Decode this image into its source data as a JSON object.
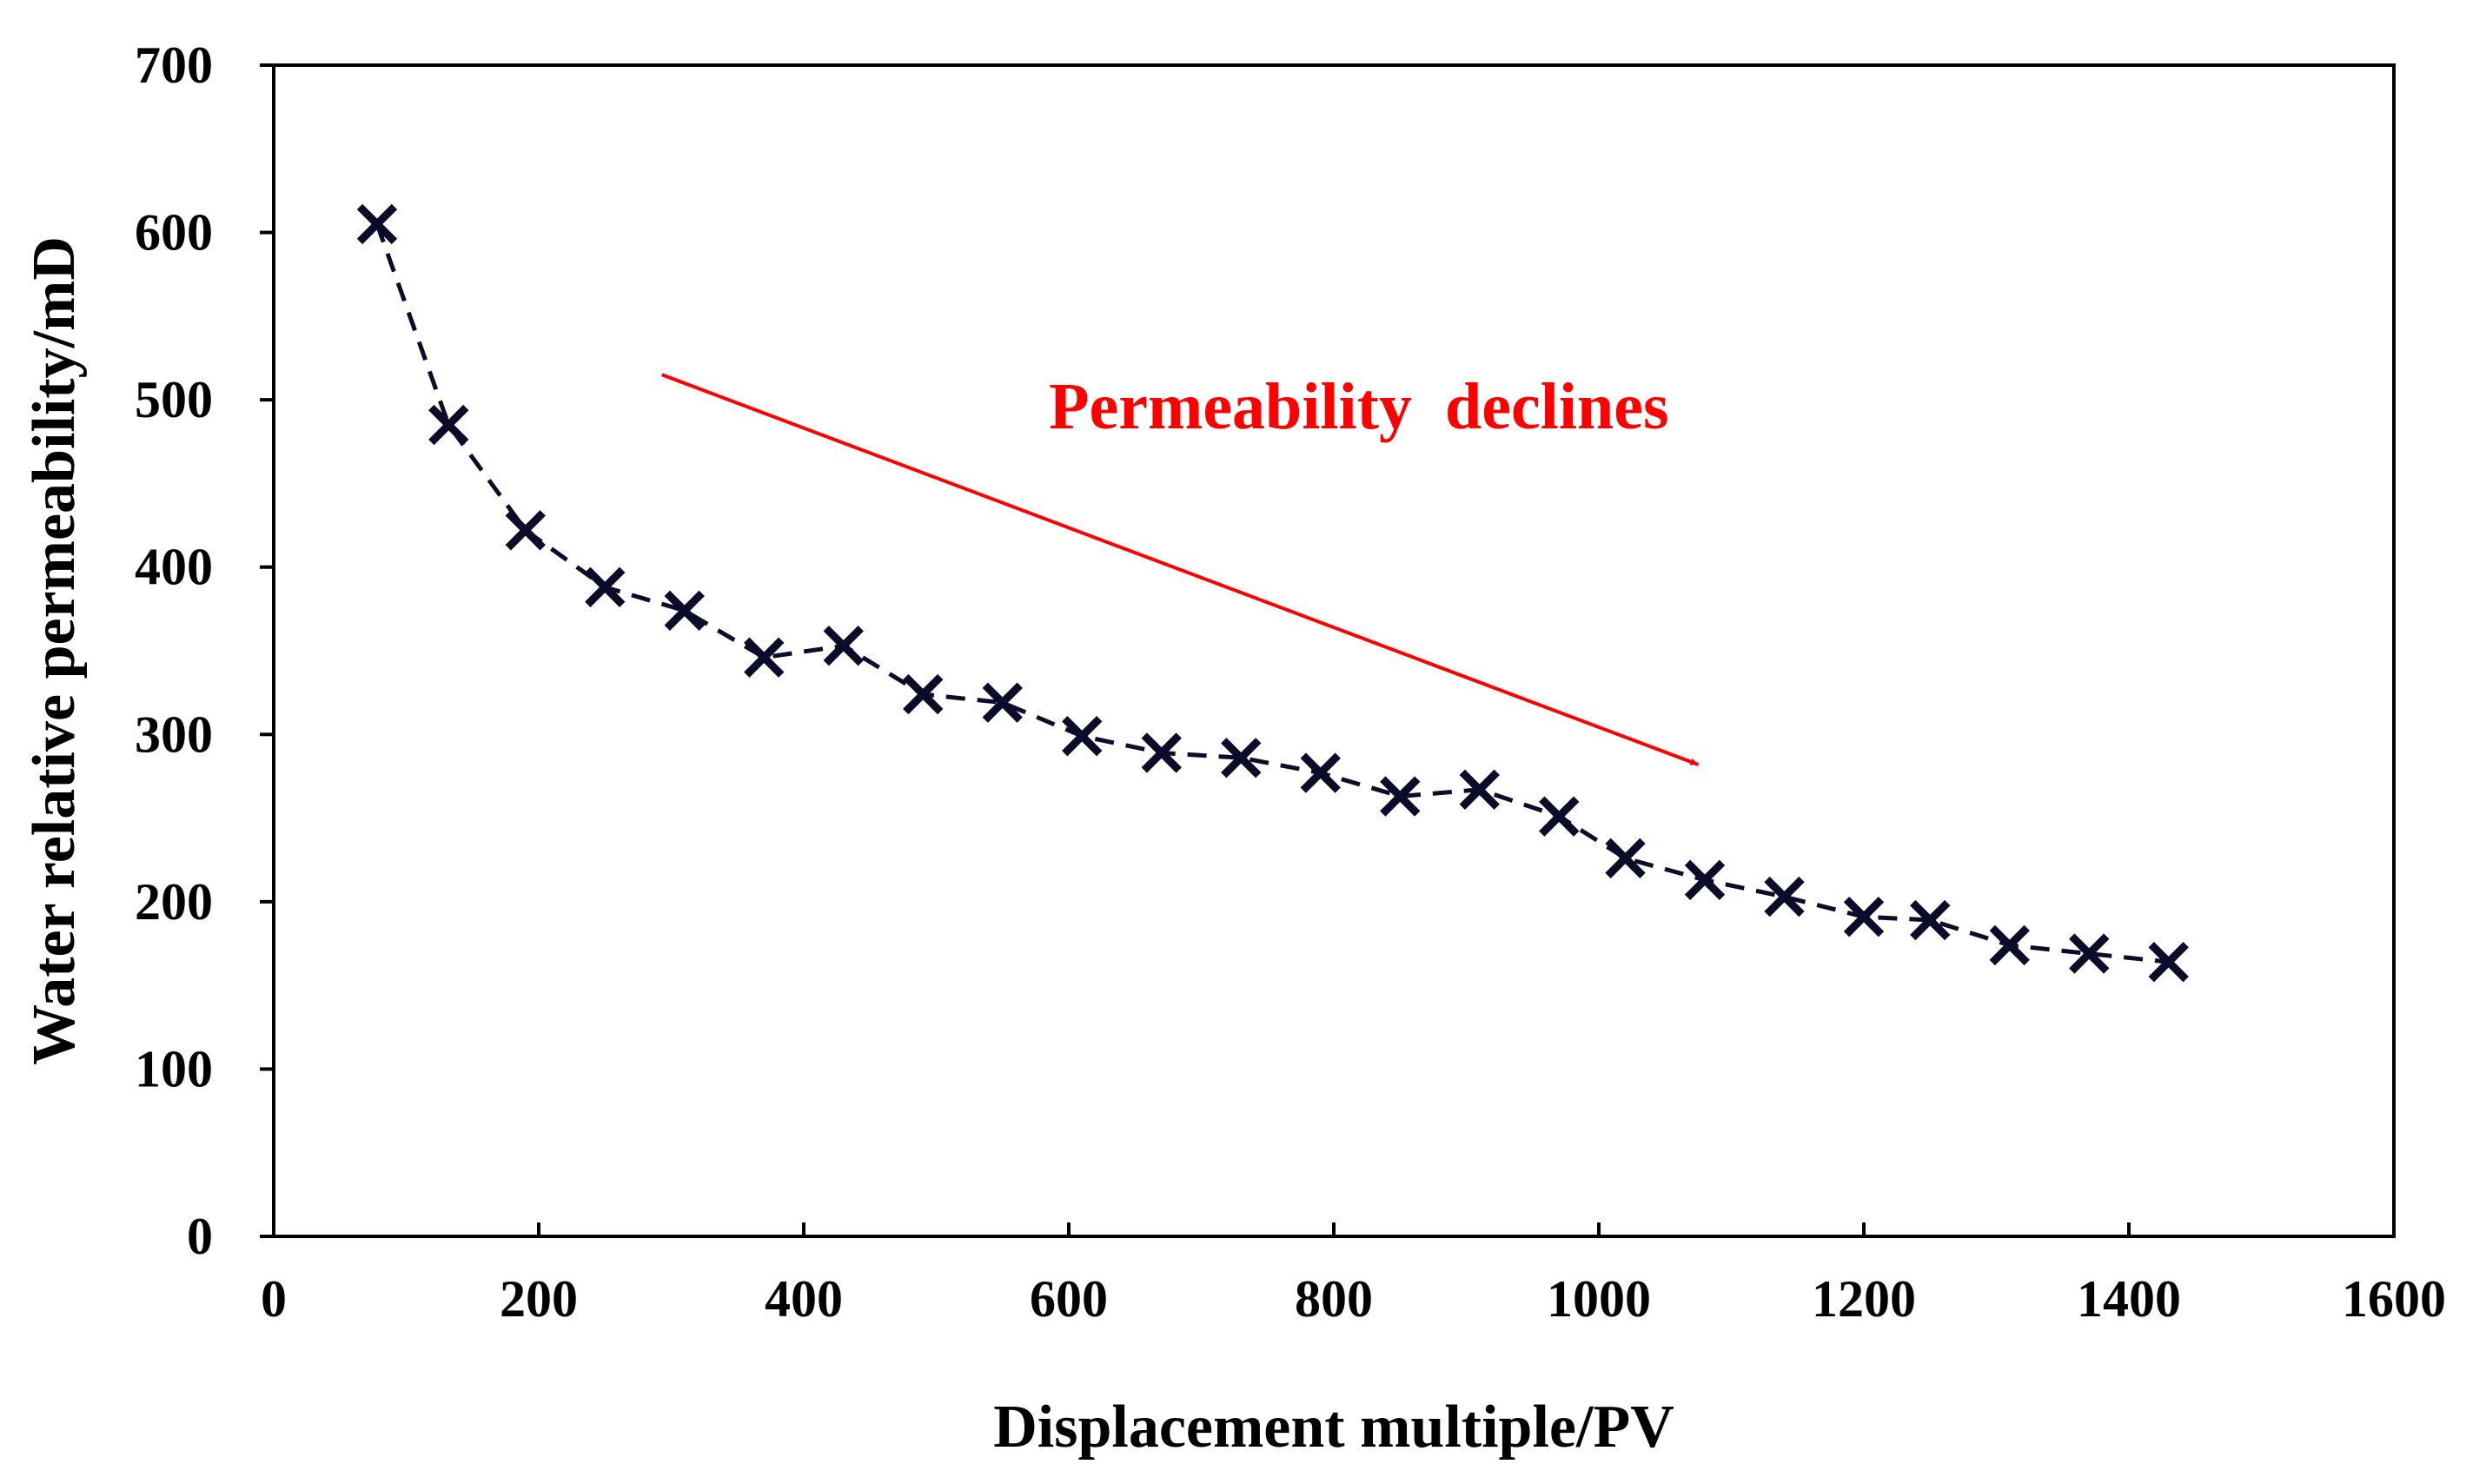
{
  "chart_data": {
    "type": "scatter",
    "title": "",
    "xlabel": "Displacement multiple/PV",
    "ylabel": "Water relative permeability/mD",
    "xlim": [
      0,
      1600
    ],
    "ylim": [
      0,
      700
    ],
    "xticks": [
      0,
      200,
      400,
      600,
      800,
      1000,
      1200,
      1400,
      1600
    ],
    "yticks": [
      0,
      100,
      200,
      300,
      400,
      500,
      600,
      700
    ],
    "grid": false,
    "legend": "none",
    "series": [
      {
        "name": "Water relative permeability",
        "marker": "x",
        "line": "dashed",
        "color": "#0b0b2a",
        "x": [
          78,
          132,
          190,
          250,
          310,
          370,
          430,
          490,
          550,
          610,
          670,
          730,
          790,
          850,
          910,
          970,
          1020,
          1080,
          1140,
          1200,
          1250,
          1310,
          1370,
          1430
        ],
        "y": [
          605,
          485,
          422,
          388,
          374,
          346,
          353,
          324,
          319,
          299,
          289,
          286,
          277,
          263,
          267,
          251,
          226,
          213,
          203,
          191,
          189,
          174,
          169,
          164
        ]
      }
    ],
    "annotations": [
      {
        "text": "Permeability  declines",
        "color": "#ff0000",
        "arrow": {
          "from": [
            293,
            515
          ],
          "to": [
            1075,
            282
          ]
        },
        "text_anchor": [
          585,
          483
        ]
      }
    ]
  }
}
